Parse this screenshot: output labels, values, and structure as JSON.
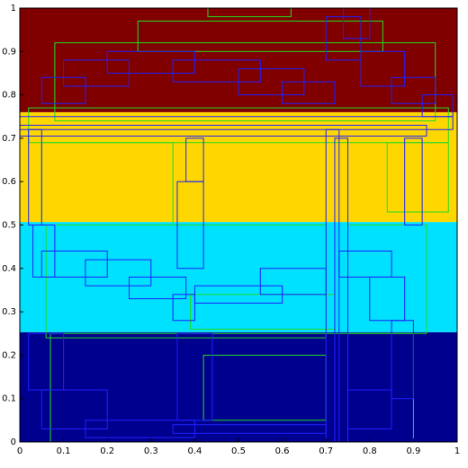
{
  "chart_data": {
    "type": "box-regions",
    "xlim": [
      0,
      1
    ],
    "ylim": [
      0,
      1
    ],
    "xticks": [
      0,
      0.1,
      0.2,
      0.3,
      0.4,
      0.5,
      0.6,
      0.7,
      0.8,
      0.9,
      1
    ],
    "yticks": [
      0,
      0.1,
      0.2,
      0.3,
      0.4,
      0.5,
      0.6,
      0.7,
      0.8,
      0.9,
      1
    ],
    "bands": [
      {
        "color": "#00008f",
        "y": [
          0,
          0.253
        ]
      },
      {
        "color": "#00e0ff",
        "y": [
          0.253,
          0.507
        ]
      },
      {
        "color": "#ffd700",
        "y": [
          0.507,
          0.76
        ]
      },
      {
        "color": "#800000",
        "y": [
          0.76,
          1
        ]
      }
    ],
    "series": [
      {
        "color": "#22dd22",
        "boxes": [
          [
            0.02,
            0.98,
            0.69,
            0.77
          ],
          [
            0.08,
            0.95,
            0.74,
            0.92
          ],
          [
            0.27,
            0.83,
            0.9,
            0.97
          ],
          [
            0.43,
            0.62,
            0.98,
            1.0
          ],
          [
            0.05,
            0.35,
            0.5,
            0.69
          ],
          [
            0.06,
            0.7,
            0.24,
            0.5
          ],
          [
            0.39,
            0.72,
            0.26,
            0.34
          ],
          [
            0.07,
            0.9,
            0.0,
            0.25
          ],
          [
            0.75,
            0.93,
            0.25,
            0.5
          ],
          [
            0.42,
            0.7,
            0.05,
            0.2
          ],
          [
            0.84,
            0.98,
            0.53,
            0.69
          ]
        ]
      },
      {
        "color": "#2020ff",
        "boxes": [
          [
            0.0,
            0.99,
            0.72,
            0.75
          ],
          [
            0.0,
            0.93,
            0.705,
            0.73
          ],
          [
            0.7,
            0.73,
            0.0,
            0.72
          ],
          [
            0.72,
            0.75,
            0.0,
            0.7
          ],
          [
            0.05,
            0.15,
            0.78,
            0.84
          ],
          [
            0.1,
            0.25,
            0.82,
            0.88
          ],
          [
            0.2,
            0.4,
            0.85,
            0.9
          ],
          [
            0.35,
            0.55,
            0.83,
            0.88
          ],
          [
            0.5,
            0.65,
            0.8,
            0.86
          ],
          [
            0.6,
            0.72,
            0.78,
            0.83
          ],
          [
            0.7,
            0.78,
            0.88,
            0.98
          ],
          [
            0.74,
            0.8,
            0.93,
            1.0
          ],
          [
            0.78,
            0.88,
            0.82,
            0.9
          ],
          [
            0.85,
            0.95,
            0.78,
            0.84
          ],
          [
            0.92,
            0.99,
            0.75,
            0.8
          ],
          [
            0.02,
            0.05,
            0.5,
            0.72
          ],
          [
            0.03,
            0.08,
            0.38,
            0.5
          ],
          [
            0.05,
            0.2,
            0.38,
            0.44
          ],
          [
            0.15,
            0.3,
            0.36,
            0.42
          ],
          [
            0.25,
            0.38,
            0.33,
            0.38
          ],
          [
            0.35,
            0.4,
            0.28,
            0.34
          ],
          [
            0.36,
            0.42,
            0.4,
            0.6
          ],
          [
            0.38,
            0.42,
            0.6,
            0.7
          ],
          [
            0.4,
            0.6,
            0.32,
            0.36
          ],
          [
            0.55,
            0.7,
            0.34,
            0.4
          ],
          [
            0.73,
            0.85,
            0.38,
            0.44
          ],
          [
            0.8,
            0.88,
            0.28,
            0.38
          ],
          [
            0.85,
            0.9,
            0.1,
            0.28
          ],
          [
            0.02,
            0.1,
            0.12,
            0.25
          ],
          [
            0.05,
            0.2,
            0.03,
            0.12
          ],
          [
            0.15,
            0.4,
            0.01,
            0.05
          ],
          [
            0.35,
            0.7,
            0.02,
            0.04
          ],
          [
            0.75,
            0.85,
            0.03,
            0.12
          ],
          [
            0.36,
            0.44,
            0.05,
            0.25
          ],
          [
            0.88,
            0.92,
            0.5,
            0.7
          ]
        ]
      }
    ]
  }
}
